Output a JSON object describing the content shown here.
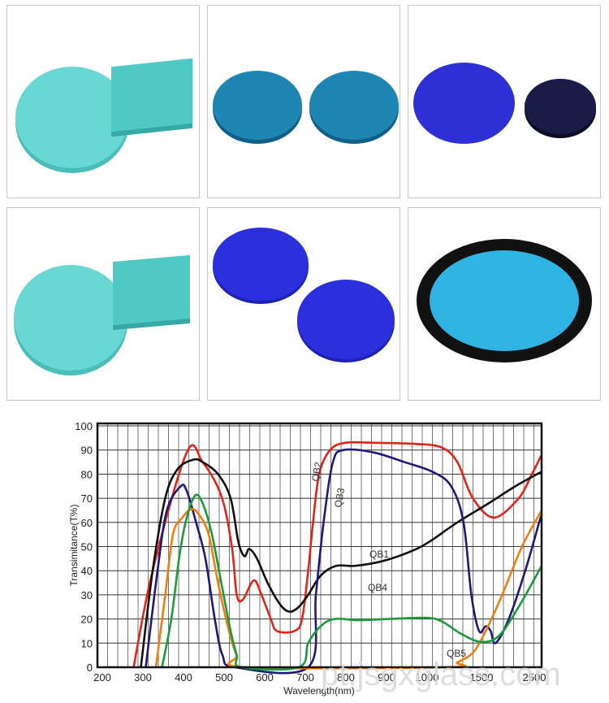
{
  "photos": [
    {
      "name": "cyan-round-and-square-filters",
      "colors": [
        "#6ad8d2",
        "#4fc9c4"
      ]
    },
    {
      "name": "teal-blue-round-filters",
      "colors": [
        "#1f86b4",
        "#0f5f86"
      ]
    },
    {
      "name": "violet-and-dark-round-filters",
      "colors": [
        "#2f2fd6",
        "#1b1b48"
      ]
    },
    {
      "name": "cyan-round-and-square-filters-2",
      "colors": [
        "#6ad8d2",
        "#4fc9c4"
      ]
    },
    {
      "name": "blue-round-filters",
      "colors": [
        "#2b30dc",
        "#1e22b0"
      ]
    },
    {
      "name": "cyan-filter-in-black-ring",
      "colors": [
        "#2fb4e4",
        "#111111"
      ]
    }
  ],
  "watermark": "pt.jsgxglass.com",
  "chart_data": {
    "type": "line",
    "xlabel": "Wavelength(nm)",
    "ylabel": "Transimitance(T%)",
    "x_ticks": [
      "200",
      "300",
      "400",
      "500",
      "600",
      "700",
      "800",
      "900",
      "1000",
      "1500",
      "2500"
    ],
    "x_tick_values": [
      200,
      300,
      400,
      500,
      600,
      700,
      800,
      900,
      1000,
      1500,
      2500
    ],
    "x_scale": "piecewise (200-1000 linear, compressed 1000-2500)",
    "xlim": [
      200,
      2700
    ],
    "y_ticks": [
      "0",
      "10",
      "20",
      "30",
      "40",
      "50",
      "60",
      "70",
      "80",
      "90",
      "100"
    ],
    "ylim": [
      0,
      100
    ],
    "grid": true,
    "series": [
      {
        "name": "QB2",
        "color": "#e0261c",
        "points": [
          [
            283,
            0
          ],
          [
            330,
            40
          ],
          [
            414,
            89
          ],
          [
            453,
            85
          ],
          [
            499,
            71
          ],
          [
            525,
            50
          ],
          [
            537,
            30
          ],
          [
            552,
            28
          ],
          [
            579,
            36
          ],
          [
            598,
            30
          ],
          [
            621,
            20
          ],
          [
            636,
            15
          ],
          [
            679,
            15
          ],
          [
            698,
            20
          ],
          [
            713,
            40
          ],
          [
            725,
            60
          ],
          [
            740,
            80
          ],
          [
            767,
            90
          ],
          [
            805,
            93
          ],
          [
            874,
            93
          ],
          [
            981,
            92.5
          ],
          [
            1157,
            91
          ],
          [
            1300,
            85
          ],
          [
            1443,
            70
          ],
          [
            1781,
            62
          ],
          [
            2250,
            70
          ],
          [
            2500,
            80
          ],
          [
            2700,
            88
          ]
        ]
      },
      {
        "name": "QB1",
        "color": "#111111",
        "points": [
          [
            301,
            0
          ],
          [
            330,
            40
          ],
          [
            361,
            70
          ],
          [
            391,
            82
          ],
          [
            430,
            86
          ],
          [
            453,
            85
          ],
          [
            491,
            80
          ],
          [
            522,
            70
          ],
          [
            541,
            52
          ],
          [
            556,
            46
          ],
          [
            568,
            49
          ],
          [
            587,
            45
          ],
          [
            613,
            35
          ],
          [
            644,
            26
          ],
          [
            667,
            23
          ],
          [
            690,
            25
          ],
          [
            713,
            30
          ],
          [
            744,
            38
          ],
          [
            782,
            42
          ],
          [
            828,
            42
          ],
          [
            897,
            44
          ],
          [
            966,
            48
          ],
          [
            1043,
            52
          ],
          [
            1300,
            60
          ],
          [
            1688,
            68
          ],
          [
            2188,
            75
          ],
          [
            2700,
            81
          ]
        ]
      },
      {
        "name": "QB3",
        "color": "#1f1a78",
        "points": [
          [
            313,
            0
          ],
          [
            342,
            40
          ],
          [
            365,
            65
          ],
          [
            399,
            75
          ],
          [
            414,
            73
          ],
          [
            437,
            60
          ],
          [
            460,
            45
          ],
          [
            483,
            20
          ],
          [
            502,
            5
          ],
          [
            533,
            0
          ],
          [
            713,
            0
          ],
          [
            732,
            30
          ],
          [
            751,
            60
          ],
          [
            774,
            85
          ],
          [
            801,
            90
          ],
          [
            874,
            89
          ],
          [
            950,
            85
          ],
          [
            1071,
            81
          ],
          [
            1243,
            75
          ],
          [
            1357,
            60
          ],
          [
            1429,
            30
          ],
          [
            1500,
            15
          ],
          [
            1625,
            17
          ],
          [
            1719,
            15
          ],
          [
            1813,
            10
          ],
          [
            2063,
            20
          ],
          [
            2375,
            40
          ],
          [
            2650,
            60
          ],
          [
            2700,
            63
          ]
        ]
      },
      {
        "name": "QB5",
        "color": "#f07d12",
        "points": [
          [
            338,
            0
          ],
          [
            361,
            30
          ],
          [
            380,
            55
          ],
          [
            403,
            62
          ],
          [
            426,
            65.5
          ],
          [
            445,
            63
          ],
          [
            468,
            55
          ],
          [
            491,
            35
          ],
          [
            518,
            15
          ],
          [
            537,
            5
          ],
          [
            560,
            0
          ],
          [
            1214,
            0
          ],
          [
            1300,
            2
          ],
          [
            1443,
            6
          ],
          [
            1625,
            15
          ],
          [
            1938,
            30
          ],
          [
            2313,
            50
          ],
          [
            2700,
            65
          ]
        ]
      },
      {
        "name": "QB4",
        "color": "#1c9a3c",
        "points": [
          [
            353,
            0
          ],
          [
            376,
            20
          ],
          [
            395,
            45
          ],
          [
            411,
            60
          ],
          [
            434,
            71
          ],
          [
            453,
            68
          ],
          [
            476,
            55
          ],
          [
            499,
            35
          ],
          [
            522,
            15
          ],
          [
            537,
            5
          ],
          [
            548,
            0
          ],
          [
            690,
            0
          ],
          [
            713,
            10
          ],
          [
            744,
            17
          ],
          [
            778,
            20
          ],
          [
            836,
            19.5
          ],
          [
            912,
            20
          ],
          [
            1014,
            20.5
          ],
          [
            1157,
            19
          ],
          [
            1329,
            14
          ],
          [
            1531,
            10.5
          ],
          [
            1875,
            13
          ],
          [
            2250,
            25
          ],
          [
            2700,
            42
          ]
        ]
      }
    ],
    "annotations": [
      "QB2",
      "QB3",
      "QB1",
      "QB4",
      "QB5"
    ]
  }
}
